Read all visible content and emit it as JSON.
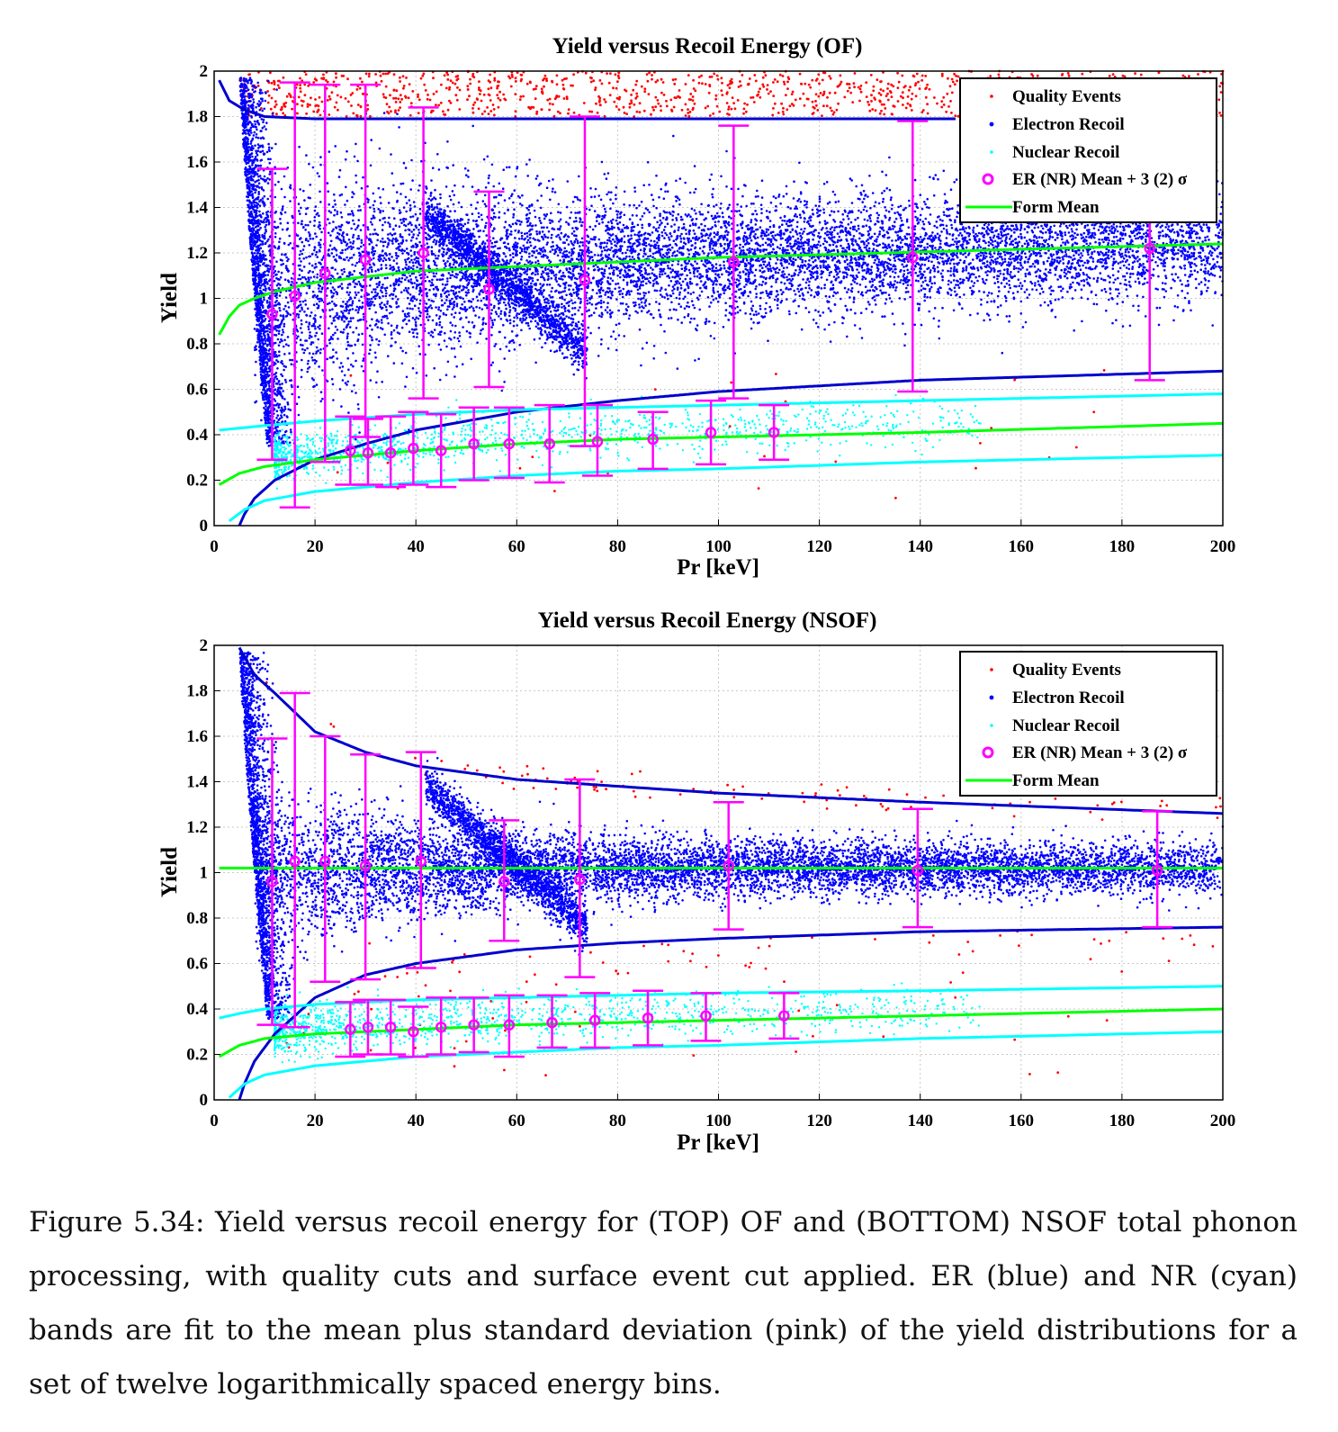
{
  "caption": "Figure 5.34: Yield versus recoil energy for (TOP) OF and (BOTTOM) NSOF total phonon processing, with quality cuts and surface event cut applied. ER (blue) and NR (cyan) bands are fit to the mean plus standard deviation (pink) of the yield distributions for a set of twelve logarithmically spaced energy bins.",
  "colors": {
    "quality": "#ff0000",
    "electron": "#0000ff",
    "nuclear": "#00ffff",
    "mean_marker": "#ff00ff",
    "form_mean": "#00ff00",
    "band_line": "#0000cd"
  },
  "legend": {
    "position": "top-right",
    "entries": [
      {
        "label": "Quality Events",
        "marker": "dot",
        "color": "#ff0000"
      },
      {
        "label": "Electron Recoil",
        "marker": "dot",
        "color": "#0000ff"
      },
      {
        "label": "Nuclear Recoil",
        "marker": "dot",
        "color": "#00ffff"
      },
      {
        "label": "ER (NR) Mean + 3 (2) σ",
        "marker": "circle",
        "color": "#ff00ff"
      },
      {
        "label": "Form Mean",
        "marker": "line",
        "color": "#00ff00"
      }
    ]
  },
  "chart_data": [
    {
      "type": "scatter",
      "title": "Yield versus Recoil Energy (OF)",
      "xlabel": "Pr [keV]",
      "ylabel": "Yield",
      "xlim": [
        0,
        200
      ],
      "ylim": [
        0,
        2
      ],
      "xticks": [
        "0",
        "20",
        "40",
        "60",
        "80",
        "100",
        "120",
        "140",
        "160",
        "180",
        "200"
      ],
      "yticks": [
        "0",
        "0.2",
        "0.4",
        "0.6",
        "0.8",
        "1",
        "1.2",
        "1.4",
        "1.6",
        "1.8",
        "2"
      ],
      "grid": true,
      "er_points": [
        {
          "x": 11.5,
          "mean": 0.93,
          "low": 0.29,
          "high": 1.57
        },
        {
          "x": 16,
          "mean": 1.01,
          "low": 0.08,
          "high": 1.95
        },
        {
          "x": 22,
          "mean": 1.11,
          "low": 0.28,
          "high": 1.94
        },
        {
          "x": 30,
          "mean": 1.17,
          "low": 0.39,
          "high": 1.94
        },
        {
          "x": 41.5,
          "mean": 1.2,
          "low": 0.56,
          "high": 1.84
        },
        {
          "x": 54.5,
          "mean": 1.04,
          "low": 0.61,
          "high": 1.47
        },
        {
          "x": 73.5,
          "mean": 1.08,
          "low": 0.35,
          "high": 1.8
        },
        {
          "x": 103,
          "mean": 1.16,
          "low": 0.56,
          "high": 1.76
        },
        {
          "x": 138.5,
          "mean": 1.18,
          "low": 0.59,
          "high": 1.78
        },
        {
          "x": 185.5,
          "mean": 1.22,
          "low": 0.64,
          "high": 1.79
        }
      ],
      "nr_points": [
        {
          "x": 27,
          "mean": 0.33,
          "low": 0.18,
          "high": 0.48
        },
        {
          "x": 30.5,
          "mean": 0.32,
          "low": 0.18,
          "high": 0.47
        },
        {
          "x": 35,
          "mean": 0.32,
          "low": 0.17,
          "high": 0.48
        },
        {
          "x": 39.5,
          "mean": 0.34,
          "low": 0.18,
          "high": 0.5
        },
        {
          "x": 45,
          "mean": 0.33,
          "low": 0.17,
          "high": 0.49
        },
        {
          "x": 51.5,
          "mean": 0.36,
          "low": 0.2,
          "high": 0.52
        },
        {
          "x": 58.5,
          "mean": 0.36,
          "low": 0.21,
          "high": 0.52
        },
        {
          "x": 66.5,
          "mean": 0.36,
          "low": 0.19,
          "high": 0.53
        },
        {
          "x": 76,
          "mean": 0.37,
          "low": 0.22,
          "high": 0.53
        },
        {
          "x": 87,
          "mean": 0.38,
          "low": 0.25,
          "high": 0.5
        },
        {
          "x": 98.5,
          "mean": 0.41,
          "low": 0.27,
          "high": 0.55
        },
        {
          "x": 111,
          "mean": 0.41,
          "low": 0.29,
          "high": 0.53
        }
      ],
      "curves": {
        "er_upper": [
          [
            1,
            1.96
          ],
          [
            3,
            1.87
          ],
          [
            6,
            1.83
          ],
          [
            10,
            1.8
          ],
          [
            20,
            1.79
          ],
          [
            40,
            1.79
          ],
          [
            100,
            1.79
          ],
          [
            147,
            1.79
          ]
        ],
        "er_mean": [
          [
            1,
            0.84
          ],
          [
            3,
            0.92
          ],
          [
            5,
            0.97
          ],
          [
            8,
            1.0
          ],
          [
            12,
            1.03
          ],
          [
            20,
            1.07
          ],
          [
            40,
            1.12
          ],
          [
            70,
            1.15
          ],
          [
            100,
            1.18
          ],
          [
            150,
            1.21
          ],
          [
            200,
            1.24
          ]
        ],
        "er_lower": [
          [
            5,
            0.0
          ],
          [
            6,
            0.05
          ],
          [
            8,
            0.12
          ],
          [
            12,
            0.2
          ],
          [
            20,
            0.29
          ],
          [
            30,
            0.36
          ],
          [
            40,
            0.42
          ],
          [
            60,
            0.5
          ],
          [
            80,
            0.55
          ],
          [
            100,
            0.59
          ],
          [
            140,
            0.64
          ],
          [
            200,
            0.68
          ]
        ],
        "nr_upper": [
          [
            1,
            0.42
          ],
          [
            10,
            0.44
          ],
          [
            20,
            0.46
          ],
          [
            40,
            0.49
          ],
          [
            60,
            0.51
          ],
          [
            80,
            0.52
          ],
          [
            100,
            0.53
          ],
          [
            140,
            0.55
          ],
          [
            200,
            0.58
          ]
        ],
        "nr_mean": [
          [
            1,
            0.18
          ],
          [
            5,
            0.23
          ],
          [
            10,
            0.26
          ],
          [
            20,
            0.29
          ],
          [
            40,
            0.33
          ],
          [
            60,
            0.36
          ],
          [
            80,
            0.38
          ],
          [
            100,
            0.39
          ],
          [
            140,
            0.41
          ],
          [
            200,
            0.45
          ]
        ],
        "nr_lower": [
          [
            3,
            0.02
          ],
          [
            6,
            0.07
          ],
          [
            10,
            0.11
          ],
          [
            20,
            0.15
          ],
          [
            40,
            0.19
          ],
          [
            60,
            0.22
          ],
          [
            80,
            0.24
          ],
          [
            100,
            0.25
          ],
          [
            140,
            0.28
          ],
          [
            200,
            0.31
          ]
        ]
      }
    },
    {
      "type": "scatter",
      "title": "Yield versus Recoil Energy (NSOF)",
      "xlabel": "Pr [keV]",
      "ylabel": "Yield",
      "xlim": [
        0,
        200
      ],
      "ylim": [
        0,
        2
      ],
      "xticks": [
        "0",
        "20",
        "40",
        "60",
        "80",
        "100",
        "120",
        "140",
        "160",
        "180",
        "200"
      ],
      "yticks": [
        "0",
        "0.2",
        "0.4",
        "0.6",
        "0.8",
        "1",
        "1.2",
        "1.4",
        "1.6",
        "1.8",
        "2"
      ],
      "grid": true,
      "er_points": [
        {
          "x": 11.5,
          "mean": 0.96,
          "low": 0.33,
          "high": 1.59
        },
        {
          "x": 16,
          "mean": 1.05,
          "low": 0.32,
          "high": 1.79
        },
        {
          "x": 22,
          "mean": 1.05,
          "low": 0.52,
          "high": 1.6
        },
        {
          "x": 30,
          "mean": 1.03,
          "low": 0.53,
          "high": 1.52
        },
        {
          "x": 41,
          "mean": 1.05,
          "low": 0.58,
          "high": 1.53
        },
        {
          "x": 57.5,
          "mean": 0.96,
          "low": 0.7,
          "high": 1.23
        },
        {
          "x": 72.5,
          "mean": 0.97,
          "low": 0.54,
          "high": 1.41
        },
        {
          "x": 102,
          "mean": 1.03,
          "low": 0.75,
          "high": 1.31
        },
        {
          "x": 139.5,
          "mean": 1.01,
          "low": 0.76,
          "high": 1.28
        },
        {
          "x": 187,
          "mean": 1.01,
          "low": 0.76,
          "high": 1.27
        }
      ],
      "nr_points": [
        {
          "x": 27,
          "mean": 0.31,
          "low": 0.19,
          "high": 0.43
        },
        {
          "x": 30.5,
          "mean": 0.32,
          "low": 0.2,
          "high": 0.44
        },
        {
          "x": 35,
          "mean": 0.32,
          "low": 0.2,
          "high": 0.44
        },
        {
          "x": 39.5,
          "mean": 0.3,
          "low": 0.19,
          "high": 0.41
        },
        {
          "x": 45,
          "mean": 0.32,
          "low": 0.2,
          "high": 0.45
        },
        {
          "x": 51.5,
          "mean": 0.33,
          "low": 0.21,
          "high": 0.45
        },
        {
          "x": 58.5,
          "mean": 0.33,
          "low": 0.19,
          "high": 0.46
        },
        {
          "x": 67,
          "mean": 0.34,
          "low": 0.23,
          "high": 0.46
        },
        {
          "x": 75.5,
          "mean": 0.35,
          "low": 0.23,
          "high": 0.47
        },
        {
          "x": 86,
          "mean": 0.36,
          "low": 0.24,
          "high": 0.48
        },
        {
          "x": 97.5,
          "mean": 0.37,
          "low": 0.26,
          "high": 0.47
        },
        {
          "x": 113,
          "mean": 0.37,
          "low": 0.27,
          "high": 0.47
        }
      ],
      "curves": {
        "er_upper": [
          [
            5,
            1.99
          ],
          [
            8,
            1.87
          ],
          [
            12,
            1.79
          ],
          [
            20,
            1.62
          ],
          [
            30,
            1.53
          ],
          [
            40,
            1.47
          ],
          [
            60,
            1.41
          ],
          [
            80,
            1.38
          ],
          [
            100,
            1.35
          ],
          [
            140,
            1.31
          ],
          [
            200,
            1.26
          ]
        ],
        "er_mean": [
          [
            1,
            1.02
          ],
          [
            200,
            1.02
          ]
        ],
        "er_lower": [
          [
            5,
            0.0
          ],
          [
            6,
            0.07
          ],
          [
            8,
            0.17
          ],
          [
            12,
            0.29
          ],
          [
            20,
            0.45
          ],
          [
            30,
            0.55
          ],
          [
            40,
            0.6
          ],
          [
            60,
            0.66
          ],
          [
            80,
            0.69
          ],
          [
            100,
            0.71
          ],
          [
            140,
            0.74
          ],
          [
            200,
            0.76
          ]
        ],
        "nr_upper": [
          [
            1,
            0.36
          ],
          [
            5,
            0.38
          ],
          [
            10,
            0.4
          ],
          [
            20,
            0.42
          ],
          [
            40,
            0.44
          ],
          [
            60,
            0.45
          ],
          [
            80,
            0.46
          ],
          [
            100,
            0.47
          ],
          [
            140,
            0.48
          ],
          [
            200,
            0.5
          ]
        ],
        "nr_mean": [
          [
            1,
            0.19
          ],
          [
            5,
            0.24
          ],
          [
            10,
            0.27
          ],
          [
            20,
            0.29
          ],
          [
            40,
            0.31
          ],
          [
            60,
            0.33
          ],
          [
            80,
            0.34
          ],
          [
            100,
            0.35
          ],
          [
            140,
            0.37
          ],
          [
            200,
            0.4
          ]
        ],
        "nr_lower": [
          [
            3,
            0.01
          ],
          [
            6,
            0.07
          ],
          [
            10,
            0.11
          ],
          [
            20,
            0.15
          ],
          [
            40,
            0.19
          ],
          [
            60,
            0.21
          ],
          [
            80,
            0.23
          ],
          [
            100,
            0.24
          ],
          [
            140,
            0.27
          ],
          [
            200,
            0.3
          ]
        ]
      }
    }
  ]
}
